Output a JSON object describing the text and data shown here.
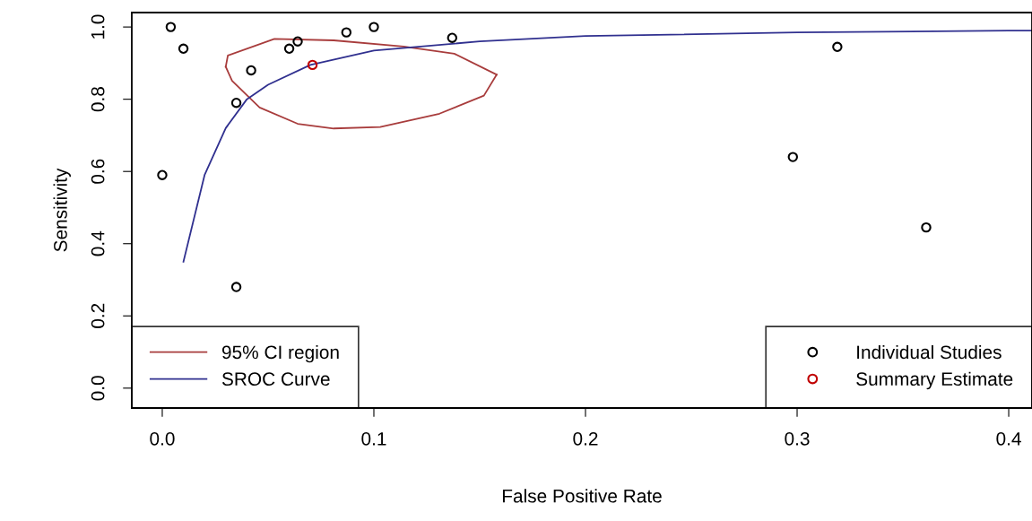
{
  "chart_data": {
    "type": "scatter",
    "xlabel": "False Positive Rate",
    "ylabel": "Sensitivity",
    "xlim": [
      -0.0144,
      0.411
    ],
    "ylim": [
      -0.055,
      1.04
    ],
    "xticks": [
      {
        "value": 0,
        "label": "0.0"
      },
      0.1,
      0.2,
      0.3,
      0.4
    ],
    "yticks": [
      {
        "value": 0,
        "label": "0.0"
      },
      0.2,
      0.4,
      0.6,
      0.8,
      {
        "value": 1,
        "label": "1.0"
      }
    ],
    "grid": false,
    "legend": "bottom",
    "series": [
      {
        "name": "95% CI region",
        "type": "line",
        "marker": "none",
        "color": "#a83c3c",
        "x": [
          0.03,
          0.031,
          0.053,
          0.081,
          0.114,
          0.138,
          0.158
        ],
        "values": [
          0.89,
          0.921,
          0.967,
          0.963,
          0.946,
          0.926,
          0.868
        ]
      },
      {
        "type": "line",
        "marker": "none",
        "color": "#a83c3c",
        "x": [
          0.03,
          0.033,
          0.046,
          0.064,
          0.081,
          0.103,
          0.131,
          0.152,
          0.158
        ],
        "values": [
          0.89,
          0.851,
          0.777,
          0.732,
          0.719,
          0.723,
          0.76,
          0.81,
          0.868
        ]
      },
      {
        "name": "SROC Curve",
        "type": "line",
        "marker": "none",
        "color": "#30308f",
        "x": [
          0.01,
          0.02,
          0.03,
          0.04,
          0.05,
          0.07,
          0.1,
          0.15,
          0.2,
          0.3,
          0.4,
          0.411
        ],
        "values": [
          0.35,
          0.59,
          0.72,
          0.8,
          0.84,
          0.895,
          0.935,
          0.96,
          0.975,
          0.985,
          0.99,
          0.99
        ]
      },
      {
        "name": "Individual Studies",
        "type": "scatter",
        "marker": "circle",
        "color": "#000000",
        "x": [
          0.0,
          0.004,
          0.01,
          0.035,
          0.035,
          0.042,
          0.06,
          0.064,
          0.087,
          0.1,
          0.137,
          0.298,
          0.319,
          0.361
        ],
        "values": [
          0.59,
          1.0,
          0.94,
          0.79,
          0.28,
          0.88,
          0.94,
          0.96,
          0.985,
          1.0,
          0.97,
          0.64,
          0.945,
          0.445
        ]
      },
      {
        "name": "Summary Estimate",
        "type": "scatter",
        "marker": "circle",
        "color": "#c00000",
        "x": [
          0.071
        ],
        "values": [
          0.895
        ]
      }
    ]
  }
}
